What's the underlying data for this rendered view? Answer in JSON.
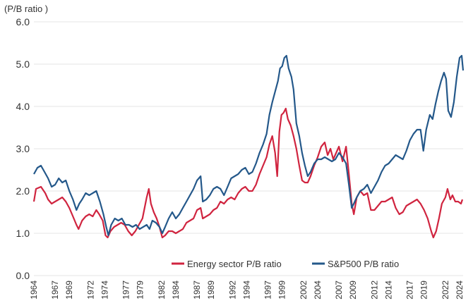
{
  "chart_data": {
    "type": "line",
    "title": "",
    "ylabel": "(P/B ratio )",
    "xlabel": "",
    "ylim": [
      0,
      6
    ],
    "xlim": [
      1964,
      2024.5
    ],
    "grid": "horizontal",
    "legend_position": "bottom-right",
    "y_ticks": [
      "0.0",
      "1.0",
      "2.0",
      "3.0",
      "4.0",
      "5.0",
      "6.0"
    ],
    "x_ticks": [
      "1964",
      "1967",
      "1969",
      "1972",
      "1974",
      "1977",
      "1979",
      "1982",
      "1984",
      "1987",
      "1989",
      "1992",
      "1994",
      "1997",
      "1999",
      "2002",
      "2004",
      "2007",
      "2009",
      "2012",
      "2014",
      "2017",
      "2019",
      "2022",
      "2024"
    ],
    "series": [
      {
        "name": "Energy sector P/B ratio",
        "color": "#d0243f",
        "points": [
          [
            1964.0,
            1.75
          ],
          [
            1964.3,
            2.05
          ],
          [
            1965.0,
            2.1
          ],
          [
            1965.6,
            1.95
          ],
          [
            1966.0,
            1.8
          ],
          [
            1966.5,
            1.7
          ],
          [
            1967.0,
            1.75
          ],
          [
            1967.5,
            1.8
          ],
          [
            1968.0,
            1.85
          ],
          [
            1968.5,
            1.75
          ],
          [
            1969.0,
            1.6
          ],
          [
            1969.5,
            1.4
          ],
          [
            1970.0,
            1.2
          ],
          [
            1970.3,
            1.1
          ],
          [
            1970.8,
            1.3
          ],
          [
            1971.3,
            1.4
          ],
          [
            1971.8,
            1.45
          ],
          [
            1972.3,
            1.4
          ],
          [
            1972.8,
            1.55
          ],
          [
            1973.2,
            1.45
          ],
          [
            1973.7,
            1.3
          ],
          [
            1974.1,
            0.95
          ],
          [
            1974.4,
            0.9
          ],
          [
            1974.8,
            1.05
          ],
          [
            1975.3,
            1.15
          ],
          [
            1975.8,
            1.2
          ],
          [
            1976.3,
            1.25
          ],
          [
            1976.8,
            1.2
          ],
          [
            1977.3,
            1.05
          ],
          [
            1977.8,
            0.95
          ],
          [
            1978.3,
            1.05
          ],
          [
            1978.8,
            1.2
          ],
          [
            1979.3,
            1.35
          ],
          [
            1979.6,
            1.6
          ],
          [
            1979.9,
            1.85
          ],
          [
            1980.2,
            2.05
          ],
          [
            1980.5,
            1.7
          ],
          [
            1980.9,
            1.5
          ],
          [
            1981.3,
            1.35
          ],
          [
            1981.7,
            1.15
          ],
          [
            1982.1,
            0.9
          ],
          [
            1982.5,
            0.95
          ],
          [
            1983.0,
            1.05
          ],
          [
            1983.5,
            1.05
          ],
          [
            1984.0,
            1.0
          ],
          [
            1984.5,
            1.05
          ],
          [
            1985.0,
            1.1
          ],
          [
            1985.5,
            1.25
          ],
          [
            1986.0,
            1.3
          ],
          [
            1986.5,
            1.35
          ],
          [
            1987.0,
            1.55
          ],
          [
            1987.5,
            1.6
          ],
          [
            1987.8,
            1.35
          ],
          [
            1988.3,
            1.4
          ],
          [
            1988.8,
            1.45
          ],
          [
            1989.3,
            1.55
          ],
          [
            1989.8,
            1.6
          ],
          [
            1990.3,
            1.75
          ],
          [
            1990.8,
            1.7
          ],
          [
            1991.3,
            1.8
          ],
          [
            1991.8,
            1.85
          ],
          [
            1992.3,
            1.8
          ],
          [
            1992.8,
            1.95
          ],
          [
            1993.3,
            2.05
          ],
          [
            1993.8,
            2.1
          ],
          [
            1994.3,
            2.0
          ],
          [
            1994.8,
            2.0
          ],
          [
            1995.3,
            2.15
          ],
          [
            1995.8,
            2.4
          ],
          [
            1996.3,
            2.6
          ],
          [
            1996.8,
            2.8
          ],
          [
            1997.2,
            3.1
          ],
          [
            1997.6,
            3.3
          ],
          [
            1998.0,
            2.9
          ],
          [
            1998.3,
            2.35
          ],
          [
            1998.6,
            3.4
          ],
          [
            1998.9,
            3.8
          ],
          [
            1999.2,
            3.85
          ],
          [
            1999.5,
            3.95
          ],
          [
            1999.8,
            3.7
          ],
          [
            2000.2,
            3.55
          ],
          [
            2000.6,
            3.3
          ],
          [
            2001.0,
            3.0
          ],
          [
            2001.4,
            2.6
          ],
          [
            2001.8,
            2.25
          ],
          [
            2002.2,
            2.2
          ],
          [
            2002.6,
            2.2
          ],
          [
            2003.0,
            2.35
          ],
          [
            2003.5,
            2.6
          ],
          [
            2004.0,
            2.8
          ],
          [
            2004.5,
            3.05
          ],
          [
            2005.0,
            3.15
          ],
          [
            2005.4,
            2.85
          ],
          [
            2005.8,
            3.0
          ],
          [
            2006.2,
            2.75
          ],
          [
            2006.6,
            2.9
          ],
          [
            2007.0,
            3.05
          ],
          [
            2007.5,
            2.7
          ],
          [
            2008.0,
            3.05
          ],
          [
            2008.4,
            2.4
          ],
          [
            2008.8,
            1.7
          ],
          [
            2009.1,
            1.45
          ],
          [
            2009.5,
            1.85
          ],
          [
            2010.0,
            2.0
          ],
          [
            2010.5,
            1.9
          ],
          [
            2011.0,
            1.95
          ],
          [
            2011.5,
            1.55
          ],
          [
            2012.0,
            1.55
          ],
          [
            2012.5,
            1.65
          ],
          [
            2013.0,
            1.75
          ],
          [
            2013.5,
            1.75
          ],
          [
            2014.0,
            1.8
          ],
          [
            2014.5,
            1.85
          ],
          [
            2015.0,
            1.6
          ],
          [
            2015.5,
            1.45
          ],
          [
            2016.0,
            1.5
          ],
          [
            2016.5,
            1.65
          ],
          [
            2017.0,
            1.7
          ],
          [
            2017.5,
            1.75
          ],
          [
            2018.0,
            1.8
          ],
          [
            2018.5,
            1.7
          ],
          [
            2019.0,
            1.55
          ],
          [
            2019.5,
            1.35
          ],
          [
            2020.0,
            1.05
          ],
          [
            2020.3,
            0.9
          ],
          [
            2020.7,
            1.05
          ],
          [
            2021.1,
            1.35
          ],
          [
            2021.5,
            1.7
          ],
          [
            2022.0,
            1.85
          ],
          [
            2022.3,
            2.05
          ],
          [
            2022.7,
            1.8
          ],
          [
            2023.0,
            1.9
          ],
          [
            2023.4,
            1.75
          ],
          [
            2023.8,
            1.75
          ],
          [
            2024.2,
            1.7
          ],
          [
            2024.4,
            1.8
          ]
        ]
      },
      {
        "name": "S&P500 P/B ratio",
        "color": "#24588a",
        "points": [
          [
            1964.0,
            2.4
          ],
          [
            1964.5,
            2.55
          ],
          [
            1965.0,
            2.6
          ],
          [
            1965.5,
            2.45
          ],
          [
            1966.0,
            2.3
          ],
          [
            1966.5,
            2.1
          ],
          [
            1967.0,
            2.15
          ],
          [
            1967.5,
            2.3
          ],
          [
            1968.0,
            2.2
          ],
          [
            1968.5,
            2.25
          ],
          [
            1969.0,
            2.0
          ],
          [
            1969.5,
            1.8
          ],
          [
            1970.0,
            1.55
          ],
          [
            1970.4,
            1.7
          ],
          [
            1970.8,
            1.8
          ],
          [
            1971.3,
            1.95
          ],
          [
            1971.8,
            1.9
          ],
          [
            1972.3,
            1.95
          ],
          [
            1972.8,
            2.0
          ],
          [
            1973.3,
            1.75
          ],
          [
            1973.8,
            1.45
          ],
          [
            1974.2,
            1.15
          ],
          [
            1974.5,
            0.95
          ],
          [
            1974.9,
            1.2
          ],
          [
            1975.4,
            1.35
          ],
          [
            1975.9,
            1.3
          ],
          [
            1976.4,
            1.35
          ],
          [
            1976.9,
            1.2
          ],
          [
            1977.4,
            1.2
          ],
          [
            1977.9,
            1.15
          ],
          [
            1978.4,
            1.2
          ],
          [
            1978.9,
            1.1
          ],
          [
            1979.4,
            1.15
          ],
          [
            1979.9,
            1.2
          ],
          [
            1980.3,
            1.1
          ],
          [
            1980.7,
            1.3
          ],
          [
            1981.2,
            1.25
          ],
          [
            1981.7,
            1.15
          ],
          [
            1982.1,
            1.0
          ],
          [
            1982.5,
            1.15
          ],
          [
            1983.0,
            1.35
          ],
          [
            1983.5,
            1.5
          ],
          [
            1984.0,
            1.35
          ],
          [
            1984.5,
            1.45
          ],
          [
            1985.0,
            1.6
          ],
          [
            1985.5,
            1.75
          ],
          [
            1986.0,
            1.9
          ],
          [
            1986.5,
            2.05
          ],
          [
            1987.0,
            2.25
          ],
          [
            1987.5,
            2.35
          ],
          [
            1987.8,
            1.75
          ],
          [
            1988.3,
            1.8
          ],
          [
            1988.8,
            1.9
          ],
          [
            1989.3,
            2.05
          ],
          [
            1989.8,
            2.1
          ],
          [
            1990.3,
            2.05
          ],
          [
            1990.8,
            1.9
          ],
          [
            1991.3,
            2.1
          ],
          [
            1991.8,
            2.3
          ],
          [
            1992.3,
            2.35
          ],
          [
            1992.8,
            2.4
          ],
          [
            1993.3,
            2.5
          ],
          [
            1993.8,
            2.55
          ],
          [
            1994.3,
            2.4
          ],
          [
            1994.8,
            2.45
          ],
          [
            1995.3,
            2.65
          ],
          [
            1995.8,
            2.9
          ],
          [
            1996.3,
            3.1
          ],
          [
            1996.8,
            3.35
          ],
          [
            1997.2,
            3.8
          ],
          [
            1997.6,
            4.1
          ],
          [
            1998.0,
            4.35
          ],
          [
            1998.4,
            4.6
          ],
          [
            1998.7,
            4.9
          ],
          [
            1999.0,
            4.95
          ],
          [
            1999.3,
            5.15
          ],
          [
            1999.6,
            5.2
          ],
          [
            1999.9,
            4.9
          ],
          [
            2000.3,
            4.7
          ],
          [
            2000.6,
            4.4
          ],
          [
            2001.0,
            3.6
          ],
          [
            2001.4,
            3.3
          ],
          [
            2001.8,
            2.9
          ],
          [
            2002.2,
            2.6
          ],
          [
            2002.6,
            2.35
          ],
          [
            2003.0,
            2.45
          ],
          [
            2003.5,
            2.65
          ],
          [
            2004.0,
            2.75
          ],
          [
            2004.5,
            2.75
          ],
          [
            2005.0,
            2.8
          ],
          [
            2005.5,
            2.75
          ],
          [
            2006.0,
            2.7
          ],
          [
            2006.5,
            2.75
          ],
          [
            2007.0,
            2.9
          ],
          [
            2007.5,
            2.8
          ],
          [
            2008.0,
            2.65
          ],
          [
            2008.4,
            2.15
          ],
          [
            2008.8,
            1.6
          ],
          [
            2009.1,
            1.7
          ],
          [
            2009.5,
            1.85
          ],
          [
            2010.0,
            2.0
          ],
          [
            2010.5,
            2.05
          ],
          [
            2011.0,
            2.15
          ],
          [
            2011.5,
            1.95
          ],
          [
            2012.0,
            2.1
          ],
          [
            2012.5,
            2.25
          ],
          [
            2013.0,
            2.45
          ],
          [
            2013.5,
            2.6
          ],
          [
            2014.0,
            2.65
          ],
          [
            2014.5,
            2.75
          ],
          [
            2015.0,
            2.85
          ],
          [
            2015.5,
            2.8
          ],
          [
            2016.0,
            2.75
          ],
          [
            2016.5,
            2.95
          ],
          [
            2017.0,
            3.2
          ],
          [
            2017.5,
            3.35
          ],
          [
            2018.0,
            3.45
          ],
          [
            2018.5,
            3.45
          ],
          [
            2018.9,
            2.95
          ],
          [
            2019.3,
            3.45
          ],
          [
            2019.8,
            3.8
          ],
          [
            2020.2,
            3.7
          ],
          [
            2020.6,
            4.05
          ],
          [
            2021.0,
            4.35
          ],
          [
            2021.4,
            4.6
          ],
          [
            2021.8,
            4.8
          ],
          [
            2022.1,
            4.65
          ],
          [
            2022.4,
            3.9
          ],
          [
            2022.8,
            3.75
          ],
          [
            2023.2,
            4.1
          ],
          [
            2023.6,
            4.7
          ],
          [
            2024.0,
            5.15
          ],
          [
            2024.3,
            5.2
          ],
          [
            2024.5,
            4.85
          ]
        ]
      }
    ]
  }
}
